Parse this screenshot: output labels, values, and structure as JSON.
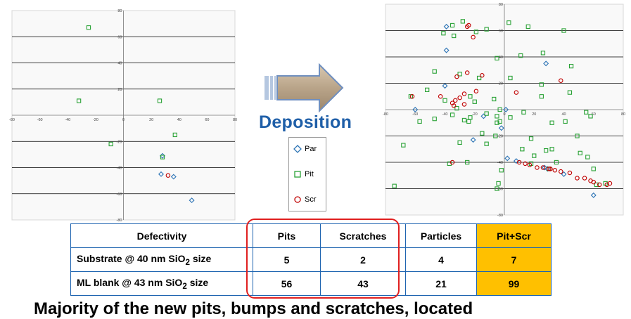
{
  "chart_data": [
    {
      "type": "scatter",
      "xlim": [
        -80,
        80
      ],
      "ylim": [
        -80,
        80
      ],
      "x_ticks": [
        -80,
        -60,
        -40,
        -20,
        0,
        20,
        40,
        60,
        80
      ],
      "y_ticks": [
        -80,
        -60,
        -40,
        -20,
        20,
        40,
        60,
        80
      ],
      "grid": "horizontal",
      "series": [
        {
          "name": "Par",
          "points": [
            [
              28,
              -31
            ],
            [
              27,
              -45
            ],
            [
              36,
              -47
            ],
            [
              49,
              -65
            ]
          ]
        },
        {
          "name": "Pit",
          "points": [
            [
              -25,
              67
            ],
            [
              -32,
              11
            ],
            [
              26,
              11
            ],
            [
              37,
              -15
            ],
            [
              -9,
              -22
            ],
            [
              28,
              -32
            ]
          ]
        },
        {
          "name": "Scr",
          "points": [
            [
              32,
              -46
            ]
          ]
        }
      ]
    },
    {
      "type": "scatter",
      "xlim": [
        -80,
        80
      ],
      "ylim": [
        -80,
        80
      ],
      "x_ticks": [
        -80,
        -60,
        -40,
        -20,
        0,
        20,
        40,
        60,
        80
      ],
      "y_ticks": [
        -80,
        -60,
        -40,
        -20,
        20,
        40,
        60,
        80
      ],
      "grid": "horizontal",
      "series": [
        {
          "name": "Par",
          "points": [
            [
              -39,
              63
            ],
            [
              -39,
              45
            ],
            [
              -40,
              18
            ],
            [
              -60,
              0
            ],
            [
              -14,
              -5
            ],
            [
              -21,
              -23
            ],
            [
              2,
              -37
            ],
            [
              8,
              -39
            ],
            [
              28,
              35
            ],
            [
              27,
              -44
            ],
            [
              40,
              -49
            ],
            [
              60,
              -65
            ],
            [
              1,
              0
            ],
            [
              -2,
              -14
            ],
            [
              29,
              -45
            ]
          ]
        },
        {
          "name": "Pit",
          "points": [
            [
              -28,
              67
            ],
            [
              3,
              66
            ],
            [
              -35,
              64
            ],
            [
              -12,
              61
            ],
            [
              -19,
              59
            ],
            [
              -41,
              58
            ],
            [
              -34,
              56
            ],
            [
              16,
              63
            ],
            [
              40,
              60
            ],
            [
              -5,
              39
            ],
            [
              11,
              41
            ],
            [
              26,
              43
            ],
            [
              45,
              33
            ],
            [
              -47,
              29
            ],
            [
              -30,
              27
            ],
            [
              -17,
              24
            ],
            [
              4,
              24
            ],
            [
              -63,
              10
            ],
            [
              -52,
              15
            ],
            [
              -40,
              7
            ],
            [
              -32,
              1
            ],
            [
              -57,
              -9
            ],
            [
              -47,
              -7
            ],
            [
              -35,
              -4
            ],
            [
              -24,
              -9
            ],
            [
              -12,
              -3
            ],
            [
              -7,
              8
            ],
            [
              -3,
              0
            ],
            [
              4,
              -6
            ],
            [
              13,
              -2
            ],
            [
              25,
              10
            ],
            [
              25,
              19
            ],
            [
              44,
              13
            ],
            [
              55,
              -2
            ],
            [
              58,
              -5
            ],
            [
              -68,
              -27
            ],
            [
              -5,
              -5
            ],
            [
              -5,
              -10
            ],
            [
              -23,
              -6
            ],
            [
              -30,
              -25
            ],
            [
              -15,
              -18
            ],
            [
              -6,
              -20
            ],
            [
              18,
              -22
            ],
            [
              32,
              -10
            ],
            [
              41,
              -9
            ],
            [
              49,
              -20
            ],
            [
              56,
              -36
            ],
            [
              -2,
              -46
            ],
            [
              -4,
              -56
            ],
            [
              -5,
              -60
            ],
            [
              -74,
              -58
            ],
            [
              28,
              -31
            ],
            [
              32,
              -30
            ],
            [
              35,
              -40
            ],
            [
              51,
              -33
            ],
            [
              12,
              -30
            ],
            [
              20,
              -35
            ],
            [
              -27,
              -8
            ],
            [
              -23,
              10
            ],
            [
              -20,
              6
            ],
            [
              -12,
              -26
            ],
            [
              -37,
              -41
            ],
            [
              -25,
              -40
            ],
            [
              18,
              -41
            ],
            [
              30,
              -45
            ],
            [
              60,
              -45
            ],
            [
              62,
              -57
            ],
            [
              68,
              -56
            ],
            [
              -3,
              -9
            ]
          ]
        },
        {
          "name": "Scr",
          "points": [
            [
              -25,
              63
            ],
            [
              -24,
              64
            ],
            [
              -21,
              55
            ],
            [
              -25,
              28
            ],
            [
              -32,
              25
            ],
            [
              -15,
              26
            ],
            [
              -27,
              12
            ],
            [
              -30,
              9
            ],
            [
              -33,
              7
            ],
            [
              -35,
              5
            ],
            [
              -34,
              3
            ],
            [
              -27,
              4
            ],
            [
              -19,
              14
            ],
            [
              -62,
              10
            ],
            [
              -43,
              10
            ],
            [
              8,
              13
            ],
            [
              38,
              22
            ],
            [
              -35,
              -40
            ],
            [
              10,
              -40
            ],
            [
              14,
              -41
            ],
            [
              17,
              -42
            ],
            [
              22,
              -44
            ],
            [
              26,
              -44
            ],
            [
              30,
              -45
            ],
            [
              31,
              -45
            ],
            [
              34,
              -46
            ],
            [
              38,
              -47
            ],
            [
              44,
              -48
            ],
            [
              49,
              -52
            ],
            [
              54,
              -52
            ],
            [
              58,
              -54
            ],
            [
              60,
              -55
            ],
            [
              64,
              -57
            ],
            [
              69,
              -57
            ],
            [
              71,
              -56
            ]
          ]
        }
      ]
    }
  ],
  "deposition_title": "Deposition",
  "legend": {
    "items": [
      {
        "label": "Par",
        "marker": "diamond",
        "color": "#2e75b6"
      },
      {
        "label": "Pit",
        "marker": "square",
        "color": "#2aa236"
      },
      {
        "label": "Scr",
        "marker": "circle",
        "color": "#c00000"
      }
    ]
  },
  "colors": {
    "par": "#2e75b6",
    "pit": "#2aa236",
    "scr": "#c00000",
    "highlight": "#ffc000",
    "title": "#1f5fa8",
    "table_border": "#1e64b0",
    "frame": "#e01f1f"
  },
  "table": {
    "headers": [
      "Defectivity",
      "Pits",
      "Scratches",
      "Particles",
      "Pit+Scr"
    ],
    "rows": [
      {
        "label_main": "Substrate @ 40 nm SiO",
        "label_sub": "2",
        "label_tail": " size",
        "pits": "5",
        "scratches": "2",
        "particles": "4",
        "pit_scr": "7"
      },
      {
        "label_main": "ML blank @ 43 nm SiO",
        "label_sub": "2",
        "label_tail": " size",
        "pits": "56",
        "scratches": "43",
        "particles": "21",
        "pit_scr": "99"
      }
    ]
  },
  "footer": "Majority of the new pits, bumps and scratches, located"
}
